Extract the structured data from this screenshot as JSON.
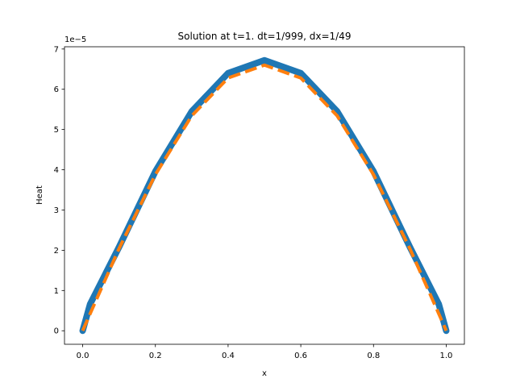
{
  "chart_data": {
    "type": "line",
    "title": "Solution at t=1. dt=1/999, dx=1/49",
    "xlabel": "x",
    "ylabel": "Heat",
    "y_offset_text": "1e−5",
    "y_scale": 1e-05,
    "xlim": [
      -0.05,
      1.05
    ],
    "ylim": [
      -0.336,
      7.056
    ],
    "grid": false,
    "x_ticks": [
      0.0,
      0.2,
      0.4,
      0.6,
      0.8,
      1.0
    ],
    "x_tick_labels": [
      "0.0",
      "0.2",
      "0.4",
      "0.6",
      "0.8",
      "1.0"
    ],
    "y_ticks": [
      0,
      1,
      2,
      3,
      4,
      5,
      6,
      7
    ],
    "y_tick_labels": [
      "0",
      "1",
      "2",
      "3",
      "4",
      "5",
      "6",
      "7"
    ],
    "series": [
      {
        "color": "#1f77b4",
        "style": "solid",
        "x": [
          0.0,
          0.0204,
          0.1,
          0.2,
          0.3,
          0.4,
          0.5,
          0.6,
          0.7,
          0.8,
          0.9,
          0.9796,
          1.0
        ],
        "y": [
          0.0,
          0.66,
          2.08,
          3.96,
          5.45,
          6.4,
          6.72,
          6.4,
          5.45,
          3.96,
          2.08,
          0.66,
          0.0
        ]
      },
      {
        "color": "#ff7f0e",
        "style": "dashed",
        "x": [
          0.0,
          0.0204,
          0.1,
          0.2,
          0.3,
          0.4,
          0.5,
          0.6,
          0.7,
          0.8,
          0.9,
          0.9796,
          1.0
        ],
        "y": [
          0.0,
          0.42,
          2.04,
          3.88,
          5.34,
          6.28,
          6.6,
          6.28,
          5.34,
          3.88,
          2.04,
          0.42,
          0.0
        ]
      }
    ]
  }
}
